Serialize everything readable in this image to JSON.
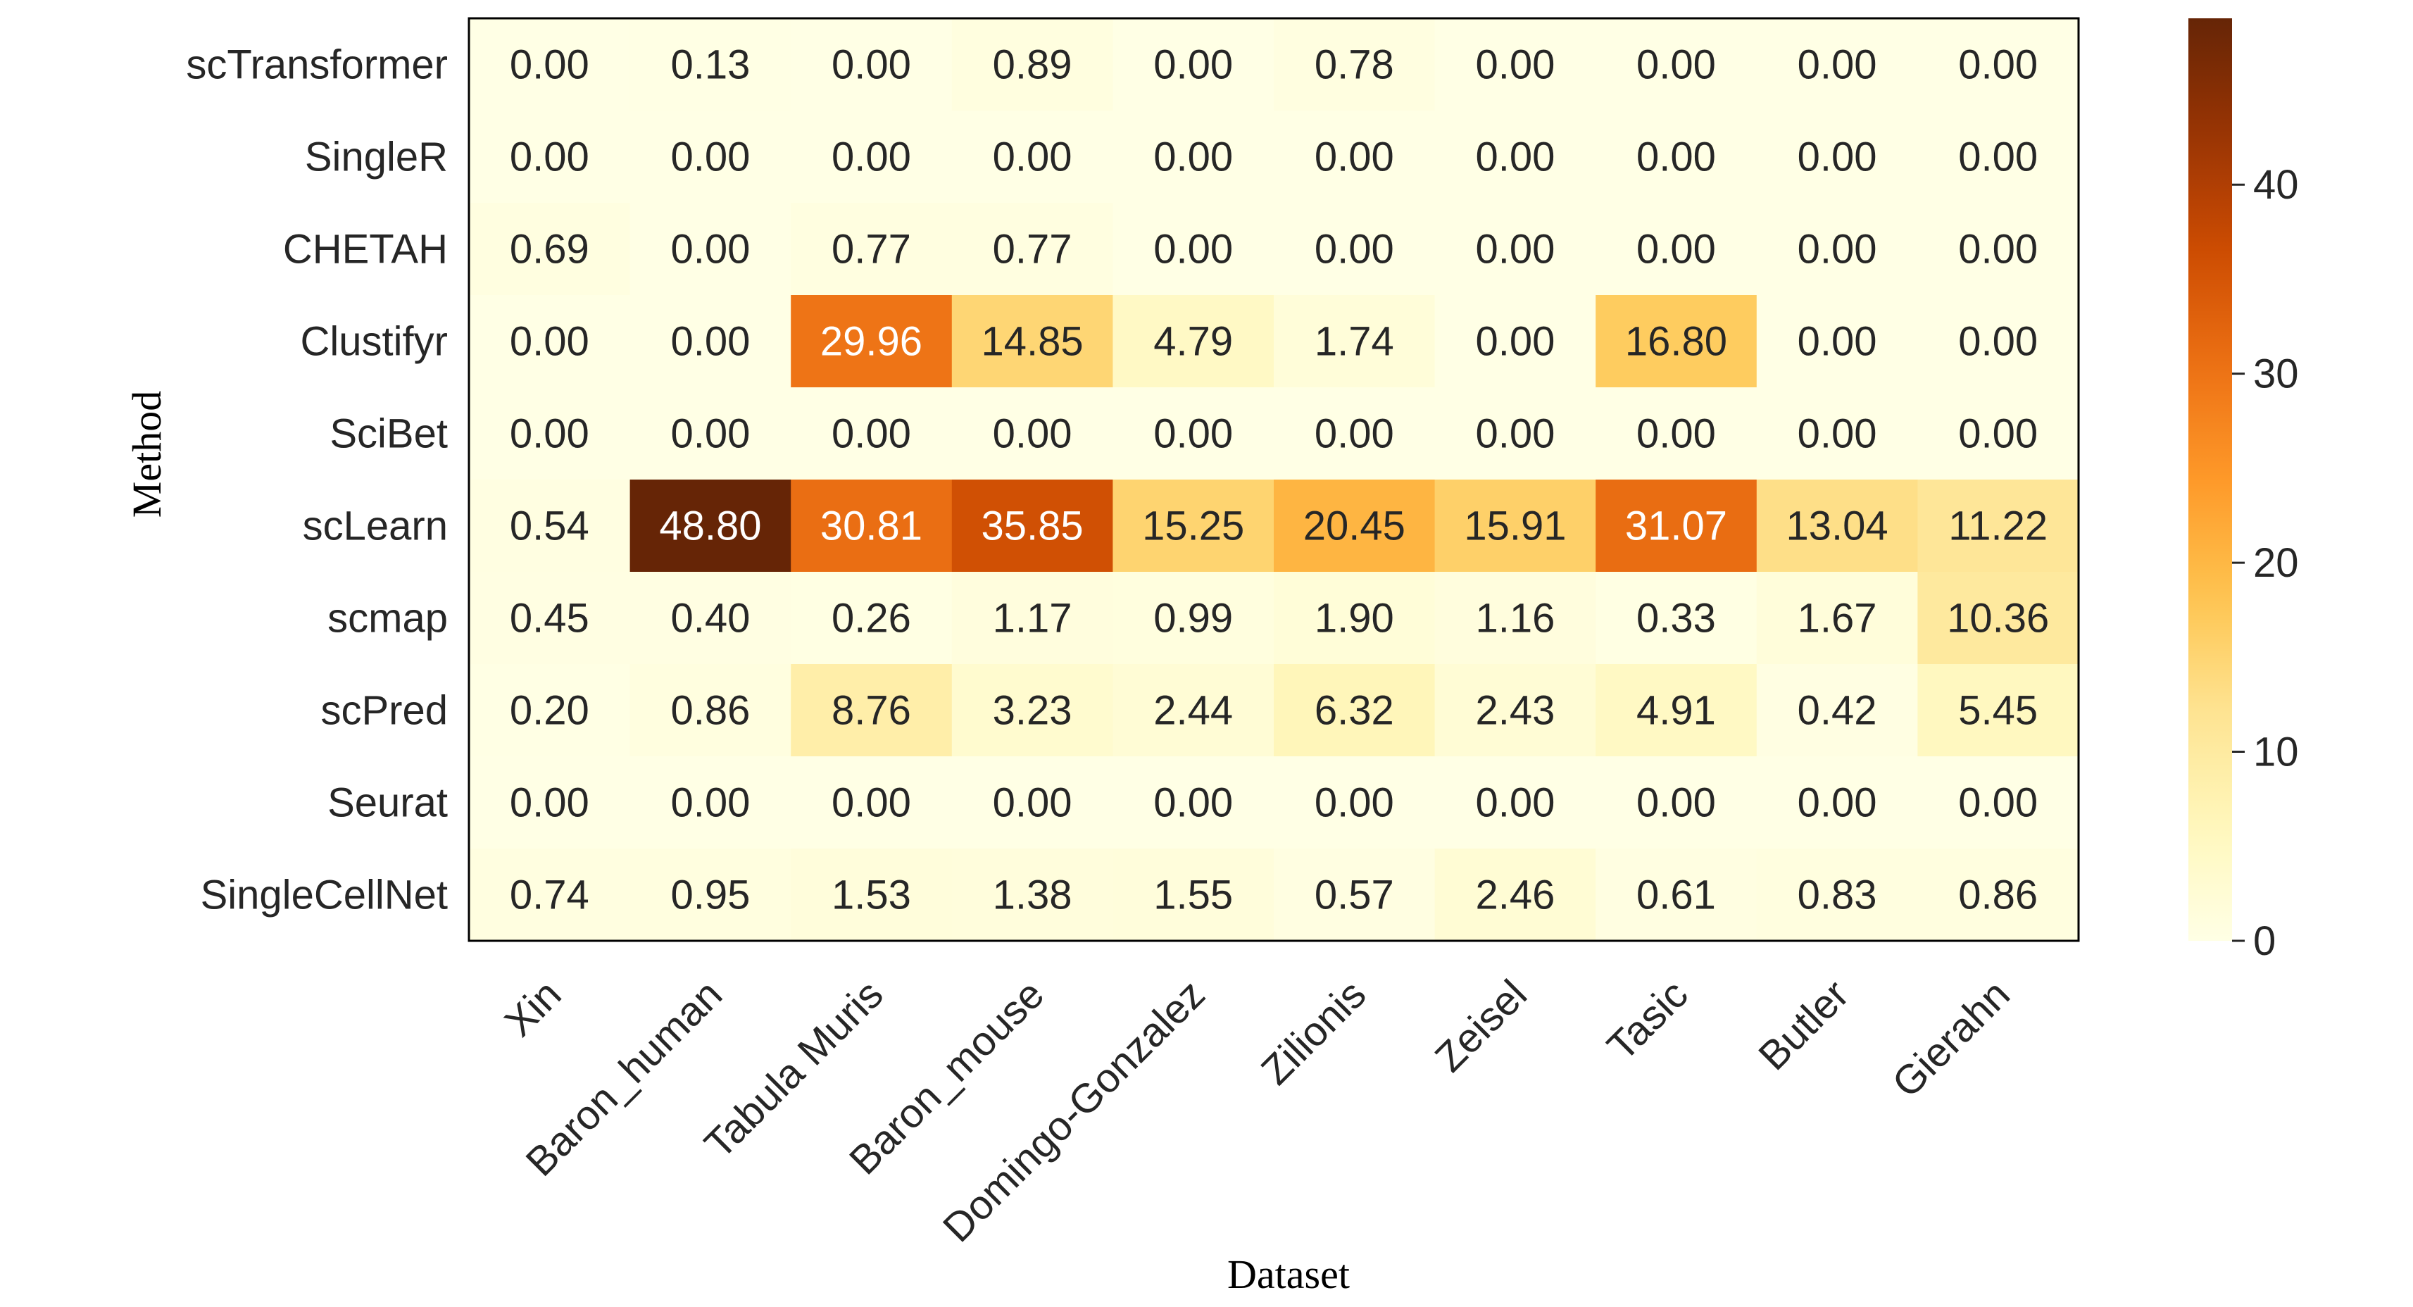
{
  "chart_data": {
    "type": "heatmap",
    "xlabel": "Dataset",
    "ylabel": "Method",
    "columns": [
      "Xin",
      "Baron_human",
      "Tabula Muris",
      "Baron_mouse",
      "Domingo-Gonzalez",
      "Zilionis",
      "Zeisel",
      "Tasic",
      "Butler",
      "Gierahn"
    ],
    "rows": [
      "scTransformer",
      "SingleR",
      "CHETAH",
      "Clustifyr",
      "SciBet",
      "scLearn",
      "scmap",
      "scPred",
      "Seurat",
      "SingleCellNet"
    ],
    "values": [
      [
        "0.00",
        "0.13",
        "0.00",
        "0.89",
        "0.00",
        "0.78",
        "0.00",
        "0.00",
        "0.00",
        "0.00"
      ],
      [
        "0.00",
        "0.00",
        "0.00",
        "0.00",
        "0.00",
        "0.00",
        "0.00",
        "0.00",
        "0.00",
        "0.00"
      ],
      [
        "0.69",
        "0.00",
        "0.77",
        "0.77",
        "0.00",
        "0.00",
        "0.00",
        "0.00",
        "0.00",
        "0.00"
      ],
      [
        "0.00",
        "0.00",
        "29.96",
        "14.85",
        "4.79",
        "1.74",
        "0.00",
        "16.80",
        "0.00",
        "0.00"
      ],
      [
        "0.00",
        "0.00",
        "0.00",
        "0.00",
        "0.00",
        "0.00",
        "0.00",
        "0.00",
        "0.00",
        "0.00"
      ],
      [
        "0.54",
        "48.80",
        "30.81",
        "35.85",
        "15.25",
        "20.45",
        "15.91",
        "31.07",
        "13.04",
        "11.22"
      ],
      [
        "0.45",
        "0.40",
        "0.26",
        "1.17",
        "0.99",
        "1.90",
        "1.16",
        "0.33",
        "1.67",
        "10.36"
      ],
      [
        "0.20",
        "0.86",
        "8.76",
        "3.23",
        "2.44",
        "6.32",
        "2.43",
        "4.91",
        "0.42",
        "5.45"
      ],
      [
        "0.00",
        "0.00",
        "0.00",
        "0.00",
        "0.00",
        "0.00",
        "0.00",
        "0.00",
        "0.00",
        "0.00"
      ],
      [
        "0.74",
        "0.95",
        "1.53",
        "1.38",
        "1.55",
        "0.57",
        "2.46",
        "0.61",
        "0.83",
        "0.86"
      ]
    ],
    "colorbar": {
      "min": 0,
      "max": 48.8,
      "ticks": [
        "0",
        "10",
        "20",
        "30",
        "40"
      ],
      "colormap": "YlOrBr"
    },
    "colors": {
      "low": "#ffffe5",
      "high": "#662506",
      "border": "#000000",
      "text_dark": "#262626",
      "text_light": "#ffffff"
    }
  }
}
